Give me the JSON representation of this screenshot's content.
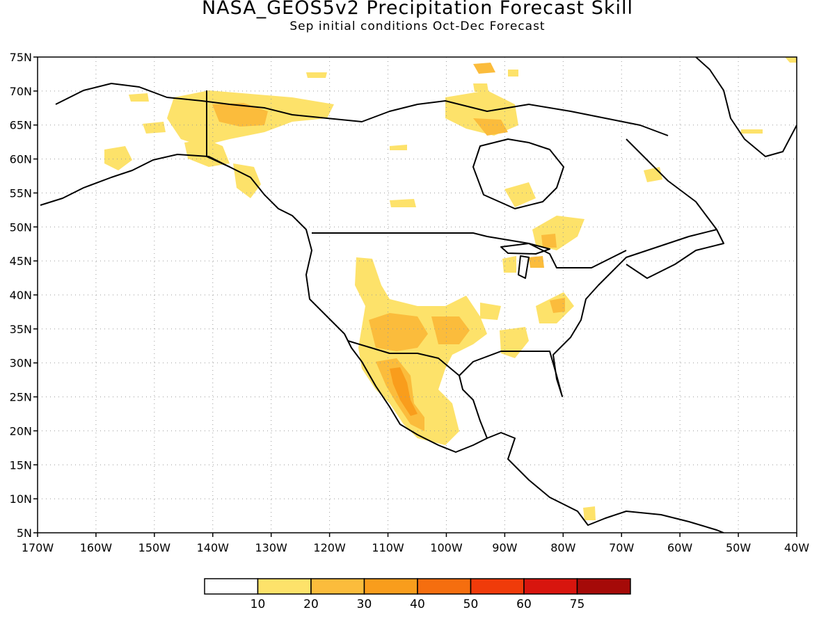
{
  "title": "NASA_GEOS5v2 Precipitation Forecast Skill",
  "subtitle": "Sep initial conditions  Oct-Dec Forecast",
  "map": {
    "lon_range": [
      -170,
      -40
    ],
    "lat_range": [
      5,
      75
    ],
    "grid": true,
    "lon_tick_labels": [
      "170W",
      "160W",
      "150W",
      "140W",
      "130W",
      "120W",
      "110W",
      "100W",
      "90W",
      "80W",
      "70W",
      "60W",
      "50W",
      "40W"
    ],
    "lat_tick_labels": [
      "5N",
      "10N",
      "15N",
      "20N",
      "25N",
      "30N",
      "35N",
      "40N",
      "45N",
      "50N",
      "55N",
      "60N",
      "65N",
      "70N",
      "75N"
    ]
  },
  "colorbar": {
    "colors": [
      "#ffffff",
      "#fde26a",
      "#fbbc3c",
      "#f99d1c",
      "#f56e0f",
      "#f03b0a",
      "#d8150e",
      "#a50a08"
    ],
    "labels": [
      "10",
      "20",
      "30",
      "40",
      "50",
      "60",
      "75"
    ]
  },
  "colors": {
    "level_10_20": "#fde26a",
    "level_20_30": "#fbbc3c",
    "level_30_40": "#f99d1c",
    "coastline": "#000000",
    "grid": "#9a9a9a"
  }
}
